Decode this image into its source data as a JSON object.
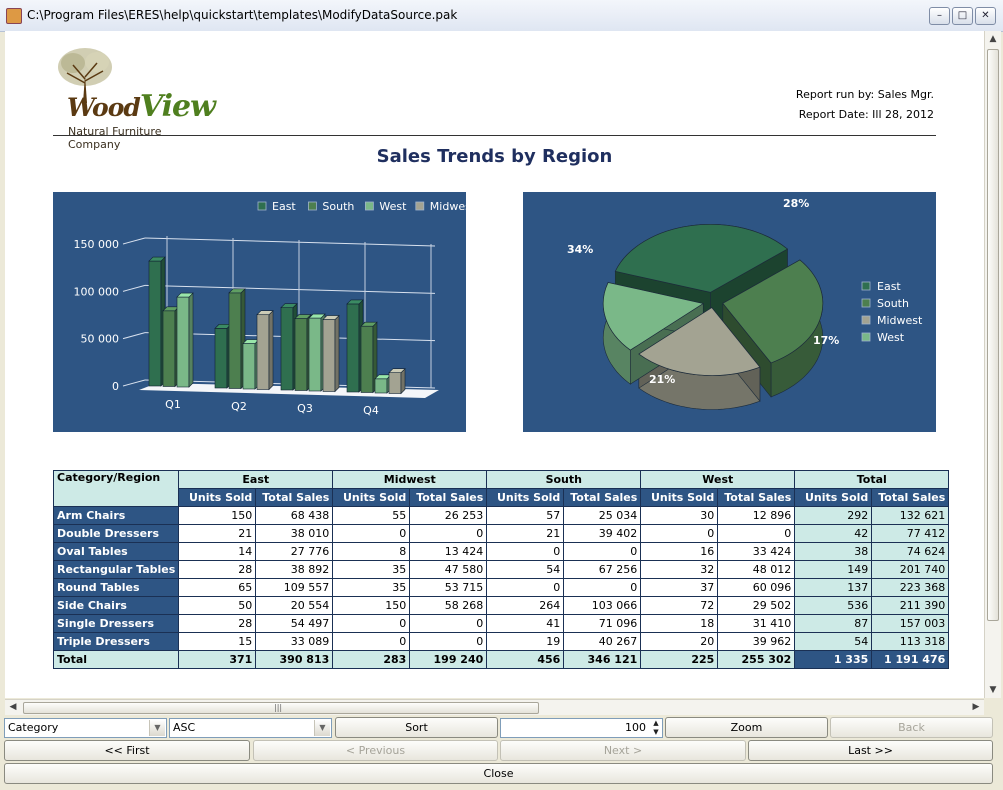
{
  "window": {
    "title": "C:\\Program Files\\ERES\\help\\quickstart\\templates\\ModifyDataSource.pak"
  },
  "report": {
    "logo_brand_prefix": "Wood",
    "logo_brand_suffix": "View",
    "logo_tagline": "Natural Furniture Company",
    "run_by": "Report run by: Sales Mgr.",
    "report_date": "Report Date: Ill 28, 2012",
    "title": "Sales Trends by Region"
  },
  "colors": {
    "chart_bg": "#2e5584",
    "header_fill": "#cdeae6",
    "east": "#2f6f4f",
    "south": "#4d7f4f",
    "west": "#7ab888",
    "midwest": "#a3a392"
  },
  "chart_data": [
    {
      "type": "bar",
      "categories": [
        "Q1",
        "Q2",
        "Q3",
        "Q4"
      ],
      "series": [
        {
          "name": "East",
          "values": [
            132000,
            63000,
            87000,
            93000
          ]
        },
        {
          "name": "South",
          "values": [
            80000,
            101000,
            76000,
            70000
          ]
        },
        {
          "name": "West",
          "values": [
            95000,
            48000,
            77000,
            15000
          ]
        },
        {
          "name": "Midwest",
          "values": [
            0,
            79000,
            76000,
            22000
          ]
        }
      ],
      "y_ticks": [
        "150 000",
        "100 000",
        "50 000",
        "0"
      ],
      "ylim": [
        0,
        150000
      ],
      "legend": [
        "East",
        "South",
        "West",
        "Midwest"
      ],
      "legend_position": "top-right",
      "grid": true
    },
    {
      "type": "pie",
      "slices": [
        {
          "name": "East",
          "value": 34,
          "label": "34%"
        },
        {
          "name": "South",
          "value": 28,
          "label": "28%"
        },
        {
          "name": "Midwest",
          "value": 21,
          "label": "21%"
        },
        {
          "name": "West",
          "value": 17,
          "label": "17%"
        }
      ],
      "legend": [
        "East",
        "South",
        "Midwest",
        "West"
      ],
      "legend_position": "right"
    }
  ],
  "table": {
    "corner": "Category/Region",
    "regions": [
      "East",
      "Midwest",
      "South",
      "West",
      "Total"
    ],
    "sub_headers": [
      "Units Sold",
      "Total Sales"
    ],
    "rows": [
      {
        "category": "Arm Chairs",
        "values": [
          "150",
          "68 438",
          "55",
          "26 253",
          "57",
          "25 034",
          "30",
          "12 896",
          "292",
          "132 621"
        ]
      },
      {
        "category": "Double Dressers",
        "values": [
          "21",
          "38 010",
          "0",
          "0",
          "21",
          "39 402",
          "0",
          "0",
          "42",
          "77 412"
        ]
      },
      {
        "category": "Oval Tables",
        "values": [
          "14",
          "27 776",
          "8",
          "13 424",
          "0",
          "0",
          "16",
          "33 424",
          "38",
          "74 624"
        ]
      },
      {
        "category": "Rectangular Tables",
        "values": [
          "28",
          "38 892",
          "35",
          "47 580",
          "54",
          "67 256",
          "32",
          "48 012",
          "149",
          "201 740"
        ]
      },
      {
        "category": "Round Tables",
        "values": [
          "65",
          "109 557",
          "35",
          "53 715",
          "0",
          "0",
          "37",
          "60 096",
          "137",
          "223 368"
        ]
      },
      {
        "category": "Side Chairs",
        "values": [
          "50",
          "20 554",
          "150",
          "58 268",
          "264",
          "103 066",
          "72",
          "29 502",
          "536",
          "211 390"
        ]
      },
      {
        "category": "Single Dressers",
        "values": [
          "28",
          "54 497",
          "0",
          "0",
          "41",
          "71 096",
          "18",
          "31 410",
          "87",
          "157 003"
        ]
      },
      {
        "category": "Triple Dressers",
        "values": [
          "15",
          "33 089",
          "0",
          "0",
          "19",
          "40 267",
          "20",
          "39 962",
          "54",
          "113 318"
        ]
      }
    ],
    "total_row": {
      "category": "Total",
      "values": [
        "371",
        "390 813",
        "283",
        "199 240",
        "456",
        "346 121",
        "225",
        "255 302",
        "1 335",
        "1 191 476"
      ]
    }
  },
  "controls": {
    "sort_field": "Category",
    "sort_order": "ASC",
    "sort_button": "Sort",
    "zoom_value": "100",
    "zoom_button": "Zoom",
    "back_button": "Back",
    "first_button": "<< First",
    "previous_button": "< Previous",
    "next_button": "Next >",
    "last_button": "Last >>",
    "close_button": "Close"
  }
}
